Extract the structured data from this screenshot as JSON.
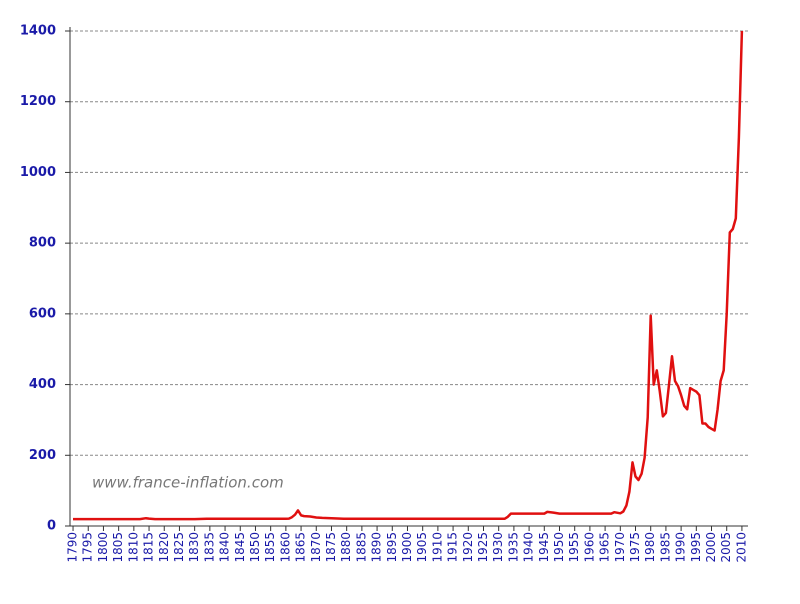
{
  "chart_data": {
    "type": "line",
    "annotation": "www.france-inflation.com",
    "color": "#e01010",
    "grid": true,
    "xlim": [
      1789,
      2012
    ],
    "ylim": [
      0,
      1400
    ],
    "yticks": [
      0,
      200,
      400,
      600,
      800,
      1000,
      1200,
      1400
    ],
    "xticks": [
      1790,
      1795,
      1800,
      1805,
      1810,
      1815,
      1820,
      1825,
      1830,
      1835,
      1840,
      1845,
      1850,
      1855,
      1860,
      1865,
      1870,
      1875,
      1880,
      1885,
      1890,
      1895,
      1900,
      1905,
      1910,
      1915,
      1920,
      1925,
      1930,
      1935,
      1940,
      1945,
      1950,
      1955,
      1960,
      1965,
      1970,
      1975,
      1980,
      1985,
      1990,
      1995,
      2000,
      2005,
      2010
    ],
    "x": [
      1790,
      1800,
      1810,
      1812,
      1814,
      1815,
      1817,
      1830,
      1834,
      1860,
      1861,
      1862,
      1863,
      1864,
      1865,
      1866,
      1868,
      1870,
      1872,
      1875,
      1878,
      1879,
      1900,
      1932,
      1933,
      1934,
      1945,
      1946,
      1948,
      1950,
      1967,
      1968,
      1970,
      1971,
      1972,
      1973,
      1974,
      1975,
      1976,
      1977,
      1978,
      1979,
      1980,
      1981,
      1982,
      1983,
      1984,
      1985,
      1986,
      1987,
      1988,
      1989,
      1990,
      1991,
      1992,
      1993,
      1994,
      1995,
      1996,
      1997,
      1998,
      1999,
      2000,
      2001,
      2002,
      2003,
      2004,
      2005,
      2006,
      2007,
      2008,
      2009,
      2010
    ],
    "values": [
      19.4,
      19.4,
      19.4,
      19.6,
      22,
      21,
      19.4,
      19.4,
      20.7,
      20.7,
      21,
      25,
      32,
      44,
      30,
      28,
      27,
      24,
      23,
      22,
      21,
      20.7,
      20.7,
      20.7,
      26,
      35,
      35,
      40,
      38,
      35,
      35,
      39,
      36,
      41,
      58,
      97,
      180,
      140,
      130,
      148,
      193,
      307,
      595,
      400,
      440,
      380,
      310,
      320,
      400,
      480,
      410,
      395,
      370,
      340,
      330,
      390,
      385,
      380,
      370,
      290,
      290,
      280,
      275,
      270,
      330,
      410,
      440,
      600,
      830,
      840,
      870,
      1100,
      1400
    ]
  }
}
